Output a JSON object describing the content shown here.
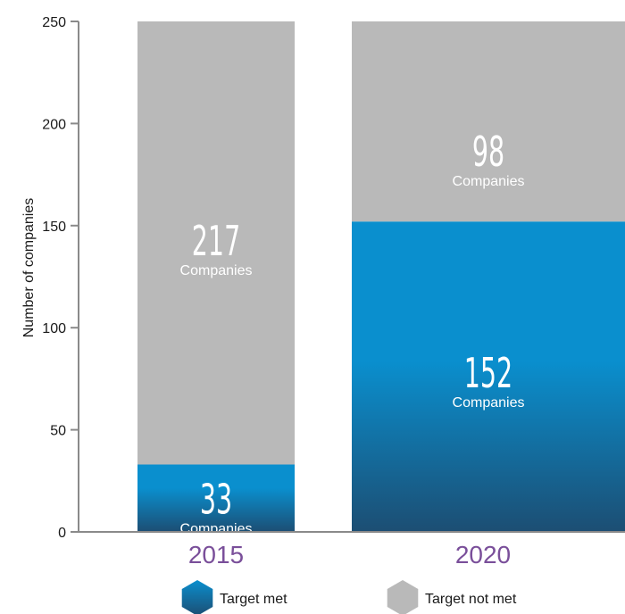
{
  "chart_data": {
    "type": "bar",
    "stacked": true,
    "ylabel": "Number of companies",
    "ylim": [
      0,
      250
    ],
    "yticks": [
      0,
      50,
      100,
      150,
      200,
      250
    ],
    "categories": [
      "2015",
      "2020"
    ],
    "series": [
      {
        "name": "Target met",
        "values": [
          33,
          152
        ],
        "color": "#0a8fce",
        "color_dark": "#1c4e73"
      },
      {
        "name": "Target not met",
        "values": [
          217,
          98
        ],
        "color": "#b9b9b9"
      }
    ],
    "bar_unit_label": "Companies",
    "grid": false,
    "legend_position": "bottom"
  }
}
